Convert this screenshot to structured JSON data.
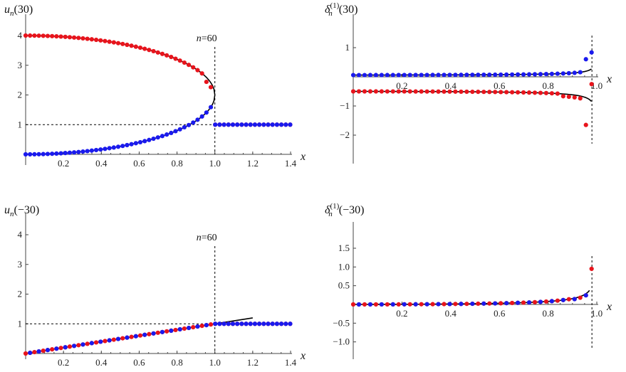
{
  "colors": {
    "red": "#e8141c",
    "blue": "#1a1aee",
    "curve": "#000000"
  },
  "chart_data": [
    {
      "type": "scatter",
      "ylabel_main": "u",
      "ylabel_sub": "n",
      "ylabel_arg": "(30)",
      "xlabel": "x",
      "annotation": "n=60",
      "xlim": [
        0,
        1.4
      ],
      "ylim": [
        -0.2,
        4.4
      ],
      "xticks": [
        0.2,
        0.4,
        0.6,
        0.8,
        1.0,
        1.2,
        1.4
      ],
      "xticklabels": [
        "0.2",
        "0.4",
        "0.6",
        "0.8",
        "1.0",
        "1.2",
        "1.4"
      ],
      "yticks": [
        1,
        2,
        3,
        4
      ],
      "yticklabels": [
        "1",
        "2",
        "3",
        "4"
      ],
      "vline_x": 1.0,
      "hline_y": 1.0,
      "hline_range": [
        0,
        1.0
      ],
      "curves": [
        {
          "expr": "upper",
          "domain": [
            0,
            1.0
          ]
        },
        {
          "expr": "lower",
          "domain": [
            0,
            1.0
          ]
        }
      ],
      "series": [
        {
          "color": "red",
          "dots": "upper"
        },
        {
          "color": "blue",
          "dots": "lower"
        }
      ]
    },
    {
      "type": "scatter",
      "ylabel_main": "δ",
      "ylabel_sub": "n",
      "ylabel_sup": "(1)",
      "ylabel_arg": "(30)",
      "xlabel": "x",
      "xlim": [
        0,
        1.0
      ],
      "ylim": [
        -2.6,
        1.6
      ],
      "xticks": [
        0.2,
        0.4,
        0.6,
        0.8,
        1.0
      ],
      "xticklabels": [
        "0.2",
        "0.4",
        "0.6",
        "0.8",
        "1.0"
      ],
      "yticks": [
        -2,
        -1,
        1
      ],
      "yticklabels": [
        "−2",
        "−1",
        "1"
      ],
      "vline_x": 0.98,
      "curves": [
        {
          "expr": "dpos30",
          "domain": [
            0,
            0.978
          ]
        },
        {
          "expr": "dneg30",
          "domain": [
            0,
            0.978
          ]
        }
      ],
      "series": [
        {
          "color": "blue",
          "dots": "dpos30"
        },
        {
          "color": "red",
          "dots": "dneg30"
        }
      ]
    },
    {
      "type": "scatter",
      "ylabel_main": "u",
      "ylabel_sub": "n",
      "ylabel_arg": "(−30)",
      "xlabel": "x",
      "annotation": "n=60",
      "xlim": [
        0,
        1.4
      ],
      "ylim": [
        -0.1,
        4.4
      ],
      "xticks": [
        0.2,
        0.4,
        0.6,
        0.8,
        1.0,
        1.2,
        1.4
      ],
      "xticklabels": [
        "0.2",
        "0.4",
        "0.6",
        "0.8",
        "1.0",
        "1.2",
        "1.4"
      ],
      "yticks": [
        1,
        2,
        3,
        4
      ],
      "yticklabels": [
        "1",
        "2",
        "3",
        "4"
      ],
      "vline_x": 1.0,
      "hline_y": 1.0,
      "hline_range": [
        0,
        1.0
      ],
      "curves": [
        {
          "expr": "linear",
          "domain": [
            0,
            1.2
          ]
        }
      ],
      "series": [
        {
          "color": "red",
          "dots": "linear"
        },
        {
          "color": "blue",
          "dots": "linear"
        }
      ]
    },
    {
      "type": "scatter",
      "ylabel_main": "δ",
      "ylabel_sub": "n",
      "ylabel_sup": "(1)",
      "ylabel_arg": "(−30)",
      "xlabel": "x",
      "xlim": [
        0,
        1.0
      ],
      "ylim": [
        -1.05,
        1.6
      ],
      "xticks": [
        0.2,
        0.4,
        0.6,
        0.8,
        1.0
      ],
      "xticklabels": [
        "0.2",
        "0.4",
        "0.6",
        "0.8",
        "1.0"
      ],
      "yticks": [
        -1.0,
        -0.5,
        0.5,
        1.0,
        1.5
      ],
      "yticklabels": [
        "−1.0",
        "−0.5",
        "0.5",
        "1.0",
        "1.5"
      ],
      "vline_x": 0.98,
      "curves": [
        {
          "expr": "dm30",
          "domain": [
            0,
            0.97
          ]
        }
      ],
      "series": [
        {
          "color": "red",
          "dots": "dm30"
        },
        {
          "color": "blue",
          "dots": "dm30"
        }
      ]
    }
  ]
}
